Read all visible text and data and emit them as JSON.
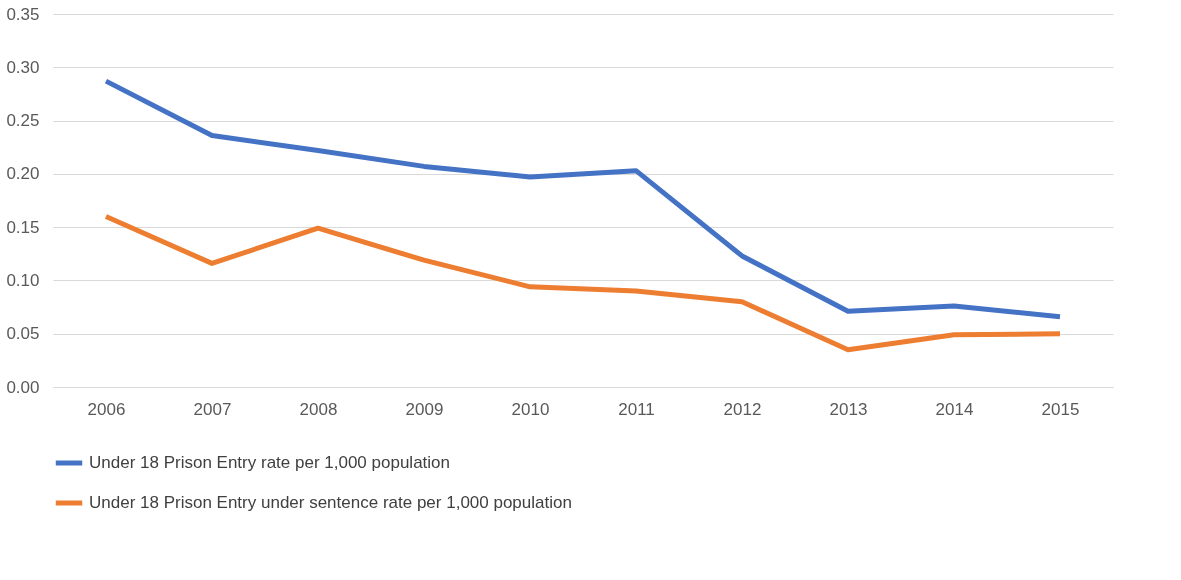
{
  "chart_data": {
    "type": "line",
    "categories": [
      "2006",
      "2007",
      "2008",
      "2009",
      "2010",
      "2011",
      "2012",
      "2013",
      "2014",
      "2015"
    ],
    "series": [
      {
        "name": "Under 18 Prison Entry rate per 1,000 population",
        "color": "#4472c4",
        "values": [
          0.287,
          0.236,
          0.222,
          0.207,
          0.197,
          0.203,
          0.123,
          0.071,
          0.076,
          0.066
        ]
      },
      {
        "name": "Under 18 Prison Entry under sentence rate per 1,000 population",
        "color": "#ed7d31",
        "values": [
          0.16,
          0.116,
          0.149,
          0.119,
          0.094,
          0.09,
          0.08,
          0.035,
          0.049,
          0.05
        ]
      }
    ],
    "ylim": [
      0,
      0.35
    ],
    "yticks": [
      {
        "value": 0,
        "label": "0.00"
      },
      {
        "value": 0.05,
        "label": "0.05"
      },
      {
        "value": 0.1,
        "label": "0.10"
      },
      {
        "value": 0.15,
        "label": "0.15"
      },
      {
        "value": 0.2,
        "label": "0.20"
      },
      {
        "value": 0.25,
        "label": "0.25"
      },
      {
        "value": 0.3,
        "label": "0.30"
      },
      {
        "value": 0.35,
        "label": "0.35"
      }
    ],
    "grid": "y",
    "legend": "bottom",
    "marker": "none",
    "line_style": "solid"
  }
}
